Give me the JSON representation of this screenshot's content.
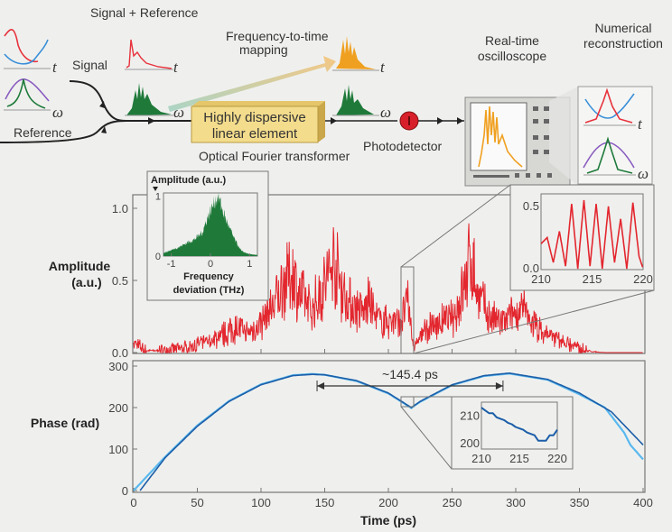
{
  "diagram": {
    "signal_plus_reference": "Signal + Reference",
    "signal": "Signal",
    "reference": "Reference",
    "freq_to_time_1": "Frequency-to-time",
    "freq_to_time_2": "mapping",
    "element_1": "Highly dispersive",
    "element_2": "linear element",
    "optical_fourier": "Optical Fourier transformer",
    "photodetector": "Photodetector",
    "oscilloscope_1": "Real-time",
    "oscilloscope_2": "oscilloscope",
    "reconstruction_1": "Numerical",
    "reconstruction_2": "reconstruction",
    "t_symbol": "t",
    "omega_symbol": "ω",
    "colors": {
      "red": "#e8323c",
      "green": "#1f7a3a",
      "orange": "#f0a020",
      "purple": "#8a5cc0",
      "blue": "#3a8fd8",
      "box": "#f3dc8c"
    }
  },
  "chart_data": [
    {
      "type": "line",
      "ylabel_1": "Amplitude",
      "ylabel_2": "(a.u.)",
      "ylim": [
        0,
        1.1
      ],
      "xlim": [
        0,
        400
      ],
      "yticks": [
        "0.0",
        "0.5",
        "1.0"
      ],
      "color": "#e3262e",
      "series": [
        {
          "x": [
            0,
            10,
            20,
            30,
            40,
            50,
            60,
            70,
            80,
            90,
            100,
            110,
            120,
            125,
            130,
            140,
            150,
            157,
            165,
            170,
            180,
            185,
            190,
            200,
            205,
            210,
            215,
            220,
            230,
            240,
            250,
            255,
            260,
            265,
            270,
            280,
            290,
            300,
            305,
            310,
            320,
            330,
            340,
            350,
            360,
            370,
            380,
            390,
            400
          ],
          "y": [
            0.1,
            0.02,
            0.02,
            0.03,
            0.05,
            0.08,
            0.12,
            0.18,
            0.25,
            0.2,
            0.3,
            0.5,
            0.75,
            0.82,
            0.6,
            0.45,
            0.7,
            0.95,
            0.6,
            0.5,
            0.4,
            0.55,
            0.35,
            0.3,
            0.35,
            0.3,
            0.52,
            0.05,
            0.25,
            0.3,
            0.35,
            0.5,
            0.7,
            1.0,
            0.6,
            0.35,
            0.3,
            0.4,
            0.45,
            0.35,
            0.22,
            0.15,
            0.1,
            0.04,
            0.01,
            0,
            0,
            0,
            0
          ]
        }
      ],
      "insets": [
        {
          "name": "spectrum",
          "type": "area",
          "ylabel": "Amplitude (a.u.)",
          "xlabel_1": "Frequency",
          "xlabel_2": "deviation (THz)",
          "xticks": [
            "-1",
            "0",
            "1"
          ],
          "yticks": [
            "0",
            "1"
          ],
          "xlim": [
            -1.2,
            1.2
          ],
          "ylim": [
            0,
            1.05
          ],
          "color": "#1f7a3a",
          "x": [
            -1.2,
            -1.0,
            -0.8,
            -0.6,
            -0.4,
            -0.2,
            -0.1,
            0,
            0.1,
            0.2,
            0.3,
            0.4,
            0.5,
            0.6,
            0.7,
            0.8,
            1.0,
            1.2
          ],
          "y": [
            0.05,
            0.1,
            0.15,
            0.22,
            0.28,
            0.4,
            0.6,
            0.75,
            0.9,
            1.0,
            0.78,
            0.6,
            0.45,
            0.3,
            0.18,
            0.08,
            0.03,
            0.02
          ]
        },
        {
          "name": "amplitude-zoom",
          "type": "line",
          "xticks": [
            "210",
            "215",
            "220"
          ],
          "yticks": [
            "0.0",
            "0.5"
          ],
          "xlim": [
            210,
            220
          ],
          "ylim": [
            0,
            0.6
          ],
          "color": "#e3262e",
          "x": [
            210,
            210.6,
            211.2,
            211.8,
            212.4,
            213,
            213.6,
            214.2,
            214.8,
            215.4,
            216,
            216.6,
            217.2,
            217.8,
            218.4,
            219,
            219.6,
            220
          ],
          "y": [
            0.2,
            0.25,
            0.05,
            0.3,
            0.02,
            0.52,
            0.0,
            0.55,
            0.02,
            0.52,
            0.0,
            0.5,
            0.05,
            0.4,
            0.0,
            0.53,
            0.1,
            0.0
          ]
        }
      ]
    },
    {
      "type": "line",
      "ylabel": "Phase (rad)",
      "xlabel": "Time (ps)",
      "xlim": [
        0,
        400
      ],
      "ylim": [
        0,
        300
      ],
      "xticks": [
        "0",
        "50",
        "100",
        "150",
        "200",
        "250",
        "300",
        "350",
        "400"
      ],
      "yticks": [
        "0",
        "100",
        "200",
        "300"
      ],
      "annotation": "~145.4 ps",
      "annotation_range": [
        144,
        290
      ],
      "series": [
        {
          "color": "#1c5ea8",
          "x": [
            5,
            25,
            50,
            75,
            100,
            125,
            140,
            150,
            175,
            200,
            218,
            225,
            250,
            275,
            295,
            325,
            350,
            375,
            400
          ],
          "y": [
            0,
            80,
            155,
            215,
            255,
            277,
            280,
            279,
            265,
            235,
            200,
            215,
            255,
            277,
            283,
            268,
            235,
            190,
            110
          ]
        },
        {
          "color": "#5ab8ee",
          "x": [
            0,
            25,
            50,
            75,
            100,
            125,
            140,
            150,
            175,
            200,
            218,
            225,
            250,
            275,
            295,
            325,
            350,
            370,
            385,
            390,
            400
          ],
          "y": [
            0,
            82,
            157,
            216,
            256,
            278,
            281,
            279,
            264,
            234,
            199,
            214,
            254,
            276,
            282,
            267,
            232,
            200,
            140,
            110,
            75
          ]
        }
      ],
      "insets": [
        {
          "name": "phase-zoom",
          "xticks": [
            "210",
            "215",
            "220"
          ],
          "yticks": [
            "200",
            "210"
          ],
          "xlim": [
            210,
            220
          ],
          "ylim": [
            198,
            215
          ],
          "color": "#1c5ea8",
          "x": [
            210,
            210.5,
            211,
            211.5,
            212,
            212.5,
            213,
            213.5,
            214,
            214.5,
            215,
            215.5,
            216,
            216.5,
            217,
            217.5,
            218,
            218.5,
            219,
            219.5,
            220
          ],
          "y": [
            213,
            212,
            211,
            211,
            209.5,
            209,
            208.5,
            207.5,
            207,
            206,
            205.5,
            205,
            204,
            203.5,
            203,
            201,
            201,
            201,
            203,
            203,
            205
          ]
        }
      ]
    }
  ]
}
